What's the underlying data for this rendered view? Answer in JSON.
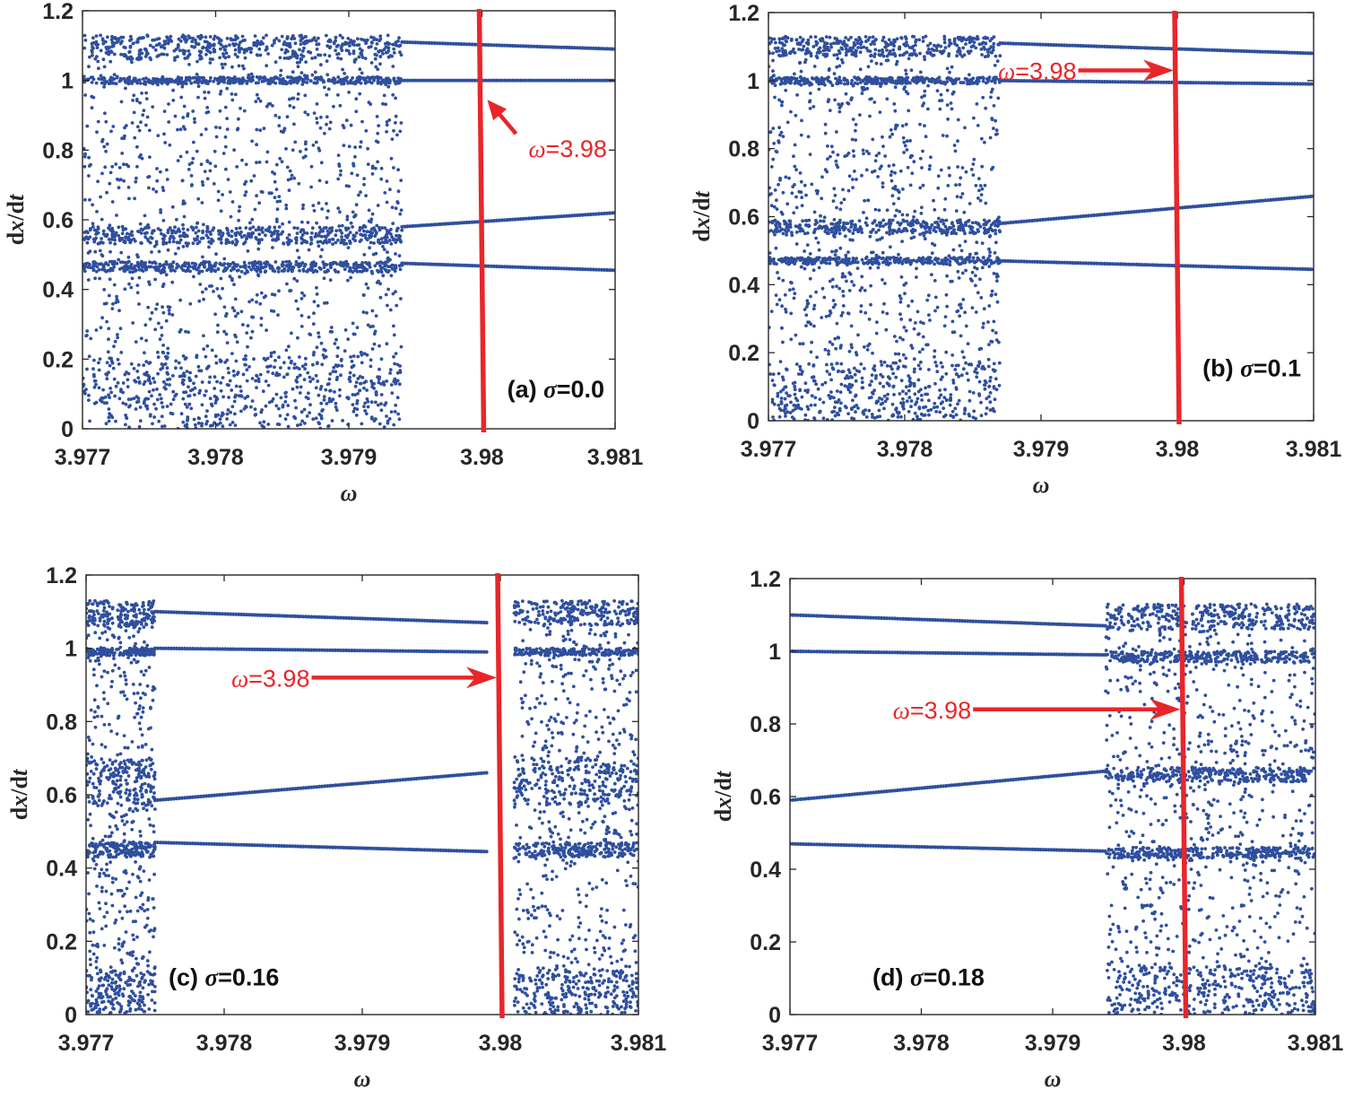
{
  "chart_data": [
    {
      "type": "scatter",
      "panel_label": "(a)",
      "sigma_symbol": "σ",
      "sigma_value": "=0.0",
      "xlabel": "ω",
      "ylabel_d1": "d",
      "ylabel_x": "x",
      "ylabel_slash": "/d",
      "ylabel_t": "t",
      "xlim": [
        3.977,
        3.981
      ],
      "ylim": [
        0,
        1.2
      ],
      "xticks": [
        "3.977",
        "3.978",
        "3.979",
        "3.98",
        "3.981"
      ],
      "yticks": [
        "0",
        "0.2",
        "0.4",
        "0.6",
        "0.8",
        "1",
        "1.2"
      ],
      "grid": false,
      "marker_value": 3.98,
      "annotation_symbol": "ω",
      "annotation_value": "=3.98",
      "annotation_style": "below-right",
      "arrow_target_y": 0.96,
      "text_pos": [
        3.98035,
        0.78
      ],
      "chaos_ranges": [
        [
          3.977,
          3.9794
        ]
      ],
      "chaos_bands": [
        [
          0.0,
          0.22
        ],
        [
          0.45,
          0.48
        ],
        [
          0.53,
          0.58
        ],
        [
          0.99,
          1.01
        ],
        [
          1.06,
          1.13
        ]
      ],
      "periodic_branches": [
        {
          "x": [
            3.9794,
            3.981
          ],
          "y": [
            1.11,
            1.09
          ]
        },
        {
          "x": [
            3.9794,
            3.981
          ],
          "y": [
            1.0,
            1.0
          ]
        },
        {
          "x": [
            3.9794,
            3.981
          ],
          "y": [
            0.58,
            0.62
          ]
        },
        {
          "x": [
            3.9794,
            3.981
          ],
          "y": [
            0.475,
            0.455
          ]
        }
      ]
    },
    {
      "type": "scatter",
      "panel_label": "(b)",
      "sigma_symbol": "σ",
      "sigma_value": "=0.1",
      "xlabel": "ω",
      "ylabel_d1": "d",
      "ylabel_x": "x",
      "ylabel_slash": "/d",
      "ylabel_t": "t",
      "xlim": [
        3.977,
        3.981
      ],
      "ylim": [
        0,
        1.2
      ],
      "xticks": [
        "3.977",
        "3.978",
        "3.979",
        "3.98",
        "3.981"
      ],
      "yticks": [
        "0",
        "0.2",
        "0.4",
        "0.6",
        "0.8",
        "1",
        "1.2"
      ],
      "grid": false,
      "marker_value": 3.98,
      "annotation_symbol": "ω",
      "annotation_value": "=3.98",
      "annotation_style": "left",
      "arrow_target_y": 1.03,
      "text_pos": [
        3.97926,
        1.03
      ],
      "chaos_ranges": [
        [
          3.977,
          3.9787
        ]
      ],
      "chaos_bands": [
        [
          0.0,
          0.17
        ],
        [
          0.46,
          0.48
        ],
        [
          0.55,
          0.59
        ],
        [
          0.99,
          1.01
        ],
        [
          1.07,
          1.13
        ]
      ],
      "periodic_branches": [
        {
          "x": [
            3.9787,
            3.981
          ],
          "y": [
            1.11,
            1.08
          ]
        },
        {
          "x": [
            3.9787,
            3.981
          ],
          "y": [
            1.0,
            0.99
          ]
        },
        {
          "x": [
            3.9787,
            3.981
          ],
          "y": [
            0.58,
            0.66
          ]
        },
        {
          "x": [
            3.9787,
            3.981
          ],
          "y": [
            0.47,
            0.445
          ]
        }
      ]
    },
    {
      "type": "scatter",
      "panel_label": "(c)",
      "sigma_symbol": "σ",
      "sigma_value": "=0.16",
      "xlabel": "ω",
      "ylabel_d1": "d",
      "ylabel_x": "x",
      "ylabel_slash": "/d",
      "ylabel_t": "t",
      "xlim": [
        3.977,
        3.981
      ],
      "ylim": [
        0,
        1.2
      ],
      "xticks": [
        "3.977",
        "3.978",
        "3.979",
        "3.98",
        "3.981"
      ],
      "yticks": [
        "0",
        "0.2",
        "0.4",
        "0.6",
        "0.8",
        "1",
        "1.2"
      ],
      "grid": false,
      "marker_value": 3.98,
      "annotation_symbol": "ω",
      "annotation_value": "=3.98",
      "annotation_style": "left",
      "arrow_target_y": 0.92,
      "text_pos": [
        3.97862,
        0.92
      ],
      "chaos_ranges": [
        [
          3.977,
          3.9775
        ],
        [
          3.9801,
          3.981
        ]
      ],
      "chaos_bands": [
        [
          0.0,
          0.12
        ],
        [
          0.43,
          0.47
        ],
        [
          0.57,
          0.7
        ],
        [
          0.98,
          1.0
        ],
        [
          1.06,
          1.13
        ]
      ],
      "periodic_branches": [
        {
          "x": [
            3.9775,
            3.9799
          ],
          "y": [
            1.1,
            1.07
          ]
        },
        {
          "x": [
            3.9775,
            3.9799
          ],
          "y": [
            1.0,
            0.99
          ]
        },
        {
          "x": [
            3.9775,
            3.9799
          ],
          "y": [
            0.585,
            0.66
          ]
        },
        {
          "x": [
            3.9775,
            3.9799
          ],
          "y": [
            0.47,
            0.445
          ]
        }
      ]
    },
    {
      "type": "scatter",
      "panel_label": "(d)",
      "sigma_symbol": "σ",
      "sigma_value": "=0.18",
      "xlabel": "ω",
      "ylabel_d1": "d",
      "ylabel_x": "x",
      "ylabel_slash": "/d",
      "ylabel_t": "t",
      "xlim": [
        3.977,
        3.981
      ],
      "ylim": [
        0,
        1.2
      ],
      "xticks": [
        "3.977",
        "3.978",
        "3.979",
        "3.98",
        "3.981"
      ],
      "yticks": [
        "0",
        "0.2",
        "0.4",
        "0.6",
        "0.8",
        "1",
        "1.2"
      ],
      "grid": false,
      "marker_value": 3.98,
      "annotation_symbol": "ω",
      "annotation_value": "=3.98",
      "annotation_style": "left",
      "arrow_target_y": 0.84,
      "text_pos": [
        3.97838,
        0.84
      ],
      "chaos_ranges": [
        [
          3.9794,
          3.981
        ]
      ],
      "chaos_bands": [
        [
          0.0,
          0.14
        ],
        [
          0.43,
          0.46
        ],
        [
          0.64,
          0.68
        ],
        [
          0.97,
          1.0
        ],
        [
          1.06,
          1.13
        ]
      ],
      "periodic_branches": [
        {
          "x": [
            3.977,
            3.9794
          ],
          "y": [
            1.1,
            1.07
          ]
        },
        {
          "x": [
            3.977,
            3.9794
          ],
          "y": [
            1.0,
            0.99
          ]
        },
        {
          "x": [
            3.977,
            3.9794
          ],
          "y": [
            0.59,
            0.67
          ]
        },
        {
          "x": [
            3.977,
            3.9794
          ],
          "y": [
            0.47,
            0.45
          ]
        }
      ]
    }
  ],
  "colors": {
    "points": "#2f4f9e",
    "marker": "#e8262a",
    "axes": "#262626"
  }
}
